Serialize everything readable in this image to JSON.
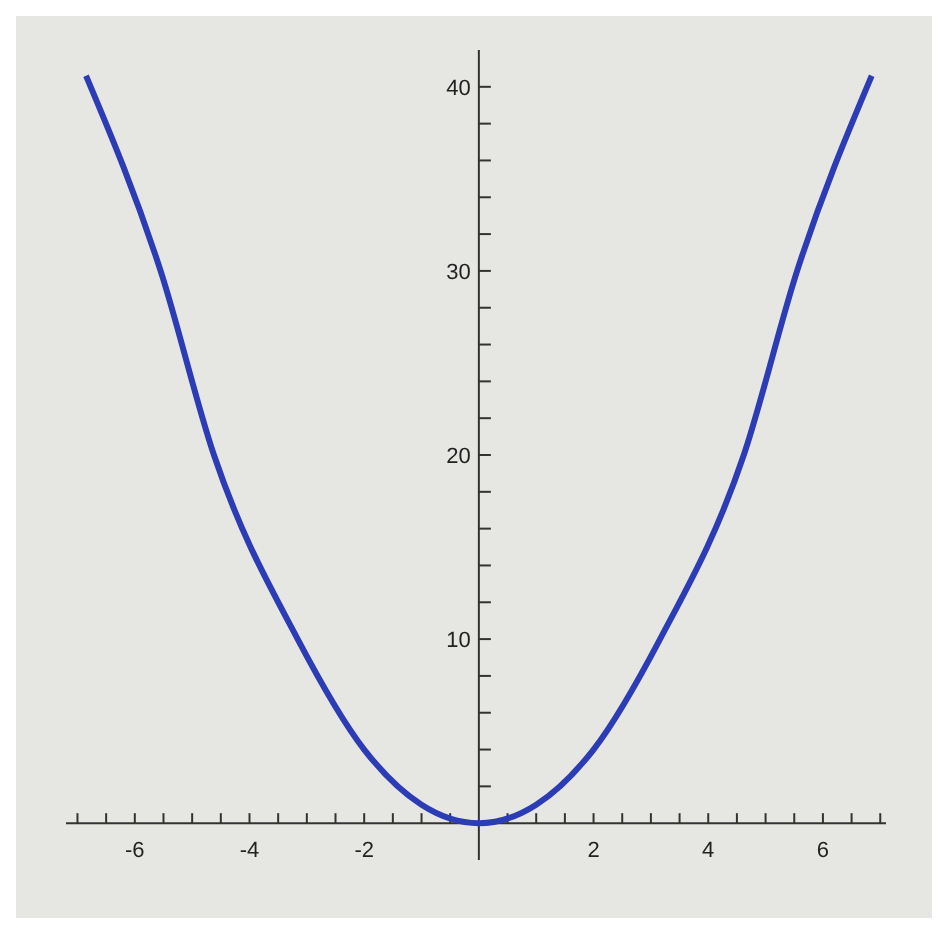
{
  "chart_data": {
    "type": "line",
    "x": [
      -6.85,
      -5.55,
      -4.62,
      -3.16,
      -2,
      -1,
      0,
      1,
      2,
      3.16,
      4.62,
      5.55,
      6.85
    ],
    "series": [
      {
        "color": "#2b3cb4",
        "values": [
          40.6,
          30,
          20,
          10,
          4,
          1,
          0,
          1,
          4,
          10,
          20,
          30,
          40.6
        ]
      }
    ],
    "xlim": [
      -7.2,
      7.1
    ],
    "ylim": [
      -2,
      42
    ],
    "xticks": [
      {
        "value": -7,
        "label": null
      },
      {
        "value": -6.5,
        "label": null
      },
      -6,
      {
        "value": -5.5,
        "label": null
      },
      {
        "value": -5,
        "label": null
      },
      {
        "value": -4.5,
        "label": null
      },
      -4,
      {
        "value": -3.5,
        "label": null
      },
      {
        "value": -3,
        "label": null
      },
      {
        "value": -2.5,
        "label": null
      },
      -2,
      {
        "value": -1.5,
        "label": null
      },
      {
        "value": -1,
        "label": null
      },
      {
        "value": -0.5,
        "label": null
      },
      {
        "value": 0.5,
        "label": null
      },
      {
        "value": 1,
        "label": null
      },
      {
        "value": 1.5,
        "label": null
      },
      2,
      {
        "value": 2.5,
        "label": null
      },
      {
        "value": 3,
        "label": null
      },
      {
        "value": 3.5,
        "label": null
      },
      4,
      {
        "value": 4.5,
        "label": null
      },
      {
        "value": 5,
        "label": null
      },
      {
        "value": 5.5,
        "label": null
      },
      6,
      {
        "value": 6.5,
        "label": null
      },
      {
        "value": 7,
        "label": null
      }
    ],
    "yticks": [
      {
        "value": 2,
        "label": null
      },
      {
        "value": 4,
        "label": null
      },
      {
        "value": 6,
        "label": null
      },
      {
        "value": 8,
        "label": null
      },
      10,
      {
        "value": 12,
        "label": null
      },
      {
        "value": 14,
        "label": null
      },
      {
        "value": 16,
        "label": null
      },
      {
        "value": 18,
        "label": null
      },
      20,
      {
        "value": 22,
        "label": null
      },
      {
        "value": 24,
        "label": null
      },
      {
        "value": 26,
        "label": null
      },
      {
        "value": 28,
        "label": null
      },
      30,
      {
        "value": 32,
        "label": null
      },
      {
        "value": 34,
        "label": null
      },
      {
        "value": 36,
        "label": null
      },
      {
        "value": 38,
        "label": null
      },
      40
    ],
    "grid": false,
    "marker": "none",
    "line_style": "solid"
  }
}
